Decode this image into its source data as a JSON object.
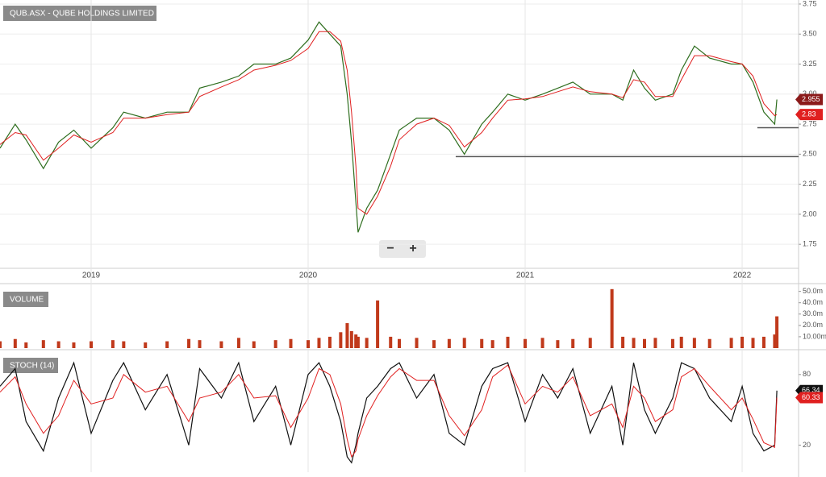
{
  "chart_data": [
    {
      "type": "line",
      "title": "QUB.ASX - QUBE HOLDINGS LIMITED",
      "x": [
        2018.58,
        2018.65,
        2018.7,
        2018.78,
        2018.85,
        2018.92,
        2019.0,
        2019.1,
        2019.15,
        2019.25,
        2019.35,
        2019.45,
        2019.5,
        2019.6,
        2019.68,
        2019.75,
        2019.85,
        2019.92,
        2020.0,
        2020.05,
        2020.1,
        2020.15,
        2020.18,
        2020.2,
        2020.22,
        2020.23,
        2020.27,
        2020.32,
        2020.38,
        2020.42,
        2020.5,
        2020.58,
        2020.65,
        2020.72,
        2020.8,
        2020.85,
        2020.92,
        2021.0,
        2021.08,
        2021.15,
        2021.22,
        2021.3,
        2021.4,
        2021.45,
        2021.5,
        2021.55,
        2021.6,
        2021.68,
        2021.72,
        2021.78,
        2021.85,
        2021.95,
        2022.0,
        2022.05,
        2022.1,
        2022.15,
        2022.16
      ],
      "series": [
        {
          "color": "#2f6e1f",
          "values": [
            2.55,
            2.75,
            2.62,
            2.38,
            2.6,
            2.7,
            2.55,
            2.72,
            2.85,
            2.8,
            2.85,
            2.85,
            3.05,
            3.1,
            3.15,
            3.25,
            3.25,
            3.3,
            3.45,
            3.6,
            3.5,
            3.4,
            3.0,
            2.6,
            2.1,
            1.85,
            2.05,
            2.2,
            2.5,
            2.7,
            2.8,
            2.8,
            2.7,
            2.5,
            2.75,
            2.85,
            3.0,
            2.95,
            3.0,
            3.05,
            3.1,
            3.0,
            3.0,
            2.95,
            3.2,
            3.05,
            2.95,
            3.0,
            3.2,
            3.4,
            3.3,
            3.25,
            3.25,
            3.1,
            2.85,
            2.75,
            2.955
          ]
        },
        {
          "color": "#e02020",
          "values": [
            2.58,
            2.68,
            2.66,
            2.45,
            2.55,
            2.66,
            2.6,
            2.68,
            2.8,
            2.8,
            2.83,
            2.85,
            2.98,
            3.06,
            3.12,
            3.2,
            3.24,
            3.28,
            3.38,
            3.52,
            3.52,
            3.44,
            3.2,
            2.85,
            2.4,
            2.05,
            2.0,
            2.15,
            2.4,
            2.62,
            2.75,
            2.8,
            2.74,
            2.56,
            2.68,
            2.8,
            2.95,
            2.96,
            2.98,
            3.02,
            3.06,
            3.02,
            3.0,
            2.97,
            3.12,
            3.1,
            2.98,
            2.98,
            3.12,
            3.32,
            3.32,
            3.27,
            3.25,
            3.15,
            2.92,
            2.82,
            2.83
          ]
        }
      ],
      "last_tags": [
        {
          "value": 2.955,
          "color": "#8b1a1a"
        },
        {
          "value": 2.83,
          "color": "#e02020"
        }
      ],
      "hlines": [
        {
          "value": 2.48,
          "from": 2020.68,
          "to": 2022.26
        },
        {
          "value": 2.72,
          "from": 2022.07,
          "to": 2022.26
        }
      ],
      "xlim": [
        2018.58,
        2022.26
      ],
      "xticks": [
        2019,
        2020,
        2021,
        2022
      ],
      "ylim": [
        1.55,
        3.77
      ],
      "yticks": [
        {
          "value": 1.75,
          "label": "1.75"
        },
        {
          "value": 2,
          "label": "2.00"
        },
        {
          "value": 2.25,
          "label": "2.25"
        },
        {
          "value": 2.5,
          "label": "2.50"
        },
        {
          "value": 2.75,
          "label": "2.75"
        },
        {
          "value": 3,
          "label": "3.00"
        },
        {
          "value": 3.25,
          "label": "3.25"
        },
        {
          "value": 3.5,
          "label": "3.50"
        },
        {
          "value": 3.75,
          "label": "3.75"
        }
      ],
      "grid": true
    },
    {
      "type": "bar",
      "title": "VOLUME",
      "color": "#c0391b",
      "x": [
        2018.58,
        2018.65,
        2018.7,
        2018.78,
        2018.85,
        2018.92,
        2019.0,
        2019.1,
        2019.15,
        2019.25,
        2019.35,
        2019.45,
        2019.5,
        2019.6,
        2019.68,
        2019.75,
        2019.85,
        2019.92,
        2020.0,
        2020.05,
        2020.1,
        2020.15,
        2020.18,
        2020.2,
        2020.22,
        2020.23,
        2020.27,
        2020.32,
        2020.38,
        2020.42,
        2020.5,
        2020.58,
        2020.65,
        2020.72,
        2020.8,
        2020.85,
        2020.92,
        2021.0,
        2021.08,
        2021.15,
        2021.22,
        2021.3,
        2021.4,
        2021.45,
        2021.5,
        2021.55,
        2021.6,
        2021.68,
        2021.72,
        2021.78,
        2021.85,
        2021.95,
        2022.0,
        2022.05,
        2022.1,
        2022.15,
        2022.16
      ],
      "values": [
        6000000,
        8000000,
        5000000,
        7000000,
        6000000,
        5000000,
        6000000,
        7000000,
        6000000,
        5000000,
        6000000,
        8000000,
        7000000,
        6000000,
        9000000,
        6000000,
        7000000,
        8000000,
        7000000,
        9000000,
        10000000,
        14000000,
        22000000,
        15000000,
        12000000,
        10000000,
        9000000,
        42000000,
        10000000,
        8000000,
        9000000,
        7000000,
        8000000,
        9000000,
        8000000,
        7000000,
        10000000,
        8000000,
        9000000,
        7000000,
        8000000,
        9000000,
        52000000,
        10000000,
        9000000,
        8000000,
        9000000,
        8000000,
        10000000,
        9000000,
        8000000,
        9000000,
        10000000,
        9000000,
        10000000,
        12000000,
        28000000
      ],
      "xlim": [
        2018.58,
        2022.26
      ],
      "ylim": [
        0,
        54000000
      ],
      "yticks": [
        {
          "value": 10000000,
          "label": "10.00m"
        },
        {
          "value": 20000000,
          "label": "20.0m"
        },
        {
          "value": 30000000,
          "label": "30.0m"
        },
        {
          "value": 40000000,
          "label": "40.0m"
        },
        {
          "value": 50000000,
          "label": "50.0m"
        }
      ]
    },
    {
      "type": "line",
      "title": "STOCH (14)",
      "x": [
        2018.58,
        2018.65,
        2018.7,
        2018.78,
        2018.85,
        2018.92,
        2019.0,
        2019.1,
        2019.15,
        2019.25,
        2019.35,
        2019.45,
        2019.5,
        2019.6,
        2019.68,
        2019.75,
        2019.85,
        2019.92,
        2020.0,
        2020.05,
        2020.1,
        2020.15,
        2020.18,
        2020.2,
        2020.22,
        2020.23,
        2020.27,
        2020.32,
        2020.38,
        2020.42,
        2020.5,
        2020.58,
        2020.65,
        2020.72,
        2020.8,
        2020.85,
        2020.92,
        2021.0,
        2021.08,
        2021.15,
        2021.22,
        2021.3,
        2021.4,
        2021.45,
        2021.5,
        2021.55,
        2021.6,
        2021.68,
        2021.72,
        2021.78,
        2021.85,
        2021.95,
        2022.0,
        2022.05,
        2022.1,
        2022.15,
        2022.16
      ],
      "series": [
        {
          "color": "#111111",
          "values": [
            70,
            85,
            40,
            15,
            60,
            90,
            30,
            75,
            90,
            50,
            80,
            20,
            85,
            60,
            90,
            40,
            70,
            20,
            80,
            90,
            70,
            40,
            10,
            5,
            20,
            30,
            60,
            70,
            85,
            90,
            60,
            80,
            30,
            20,
            70,
            85,
            90,
            40,
            80,
            60,
            85,
            30,
            70,
            20,
            90,
            50,
            30,
            60,
            90,
            85,
            60,
            40,
            70,
            30,
            15,
            20,
            66.34
          ]
        },
        {
          "color": "#e02020",
          "values": [
            65,
            78,
            55,
            30,
            45,
            75,
            55,
            60,
            80,
            65,
            70,
            40,
            60,
            65,
            80,
            60,
            62,
            35,
            60,
            85,
            80,
            55,
            25,
            10,
            15,
            25,
            45,
            62,
            78,
            85,
            75,
            75,
            45,
            28,
            50,
            78,
            88,
            55,
            70,
            65,
            78,
            45,
            55,
            35,
            70,
            60,
            40,
            50,
            78,
            85,
            70,
            50,
            60,
            42,
            22,
            18,
            60.33
          ]
        }
      ],
      "last_tags": [
        {
          "value": 66.34,
          "color": "#111111"
        },
        {
          "value": 60.33,
          "color": "#e02020"
        }
      ],
      "xlim": [
        2018.58,
        2022.26
      ],
      "ylim": [
        -3,
        97
      ],
      "yticks": [
        20,
        80
      ]
    }
  ],
  "ui": {
    "zoom_out": "−",
    "zoom_in": "+"
  }
}
